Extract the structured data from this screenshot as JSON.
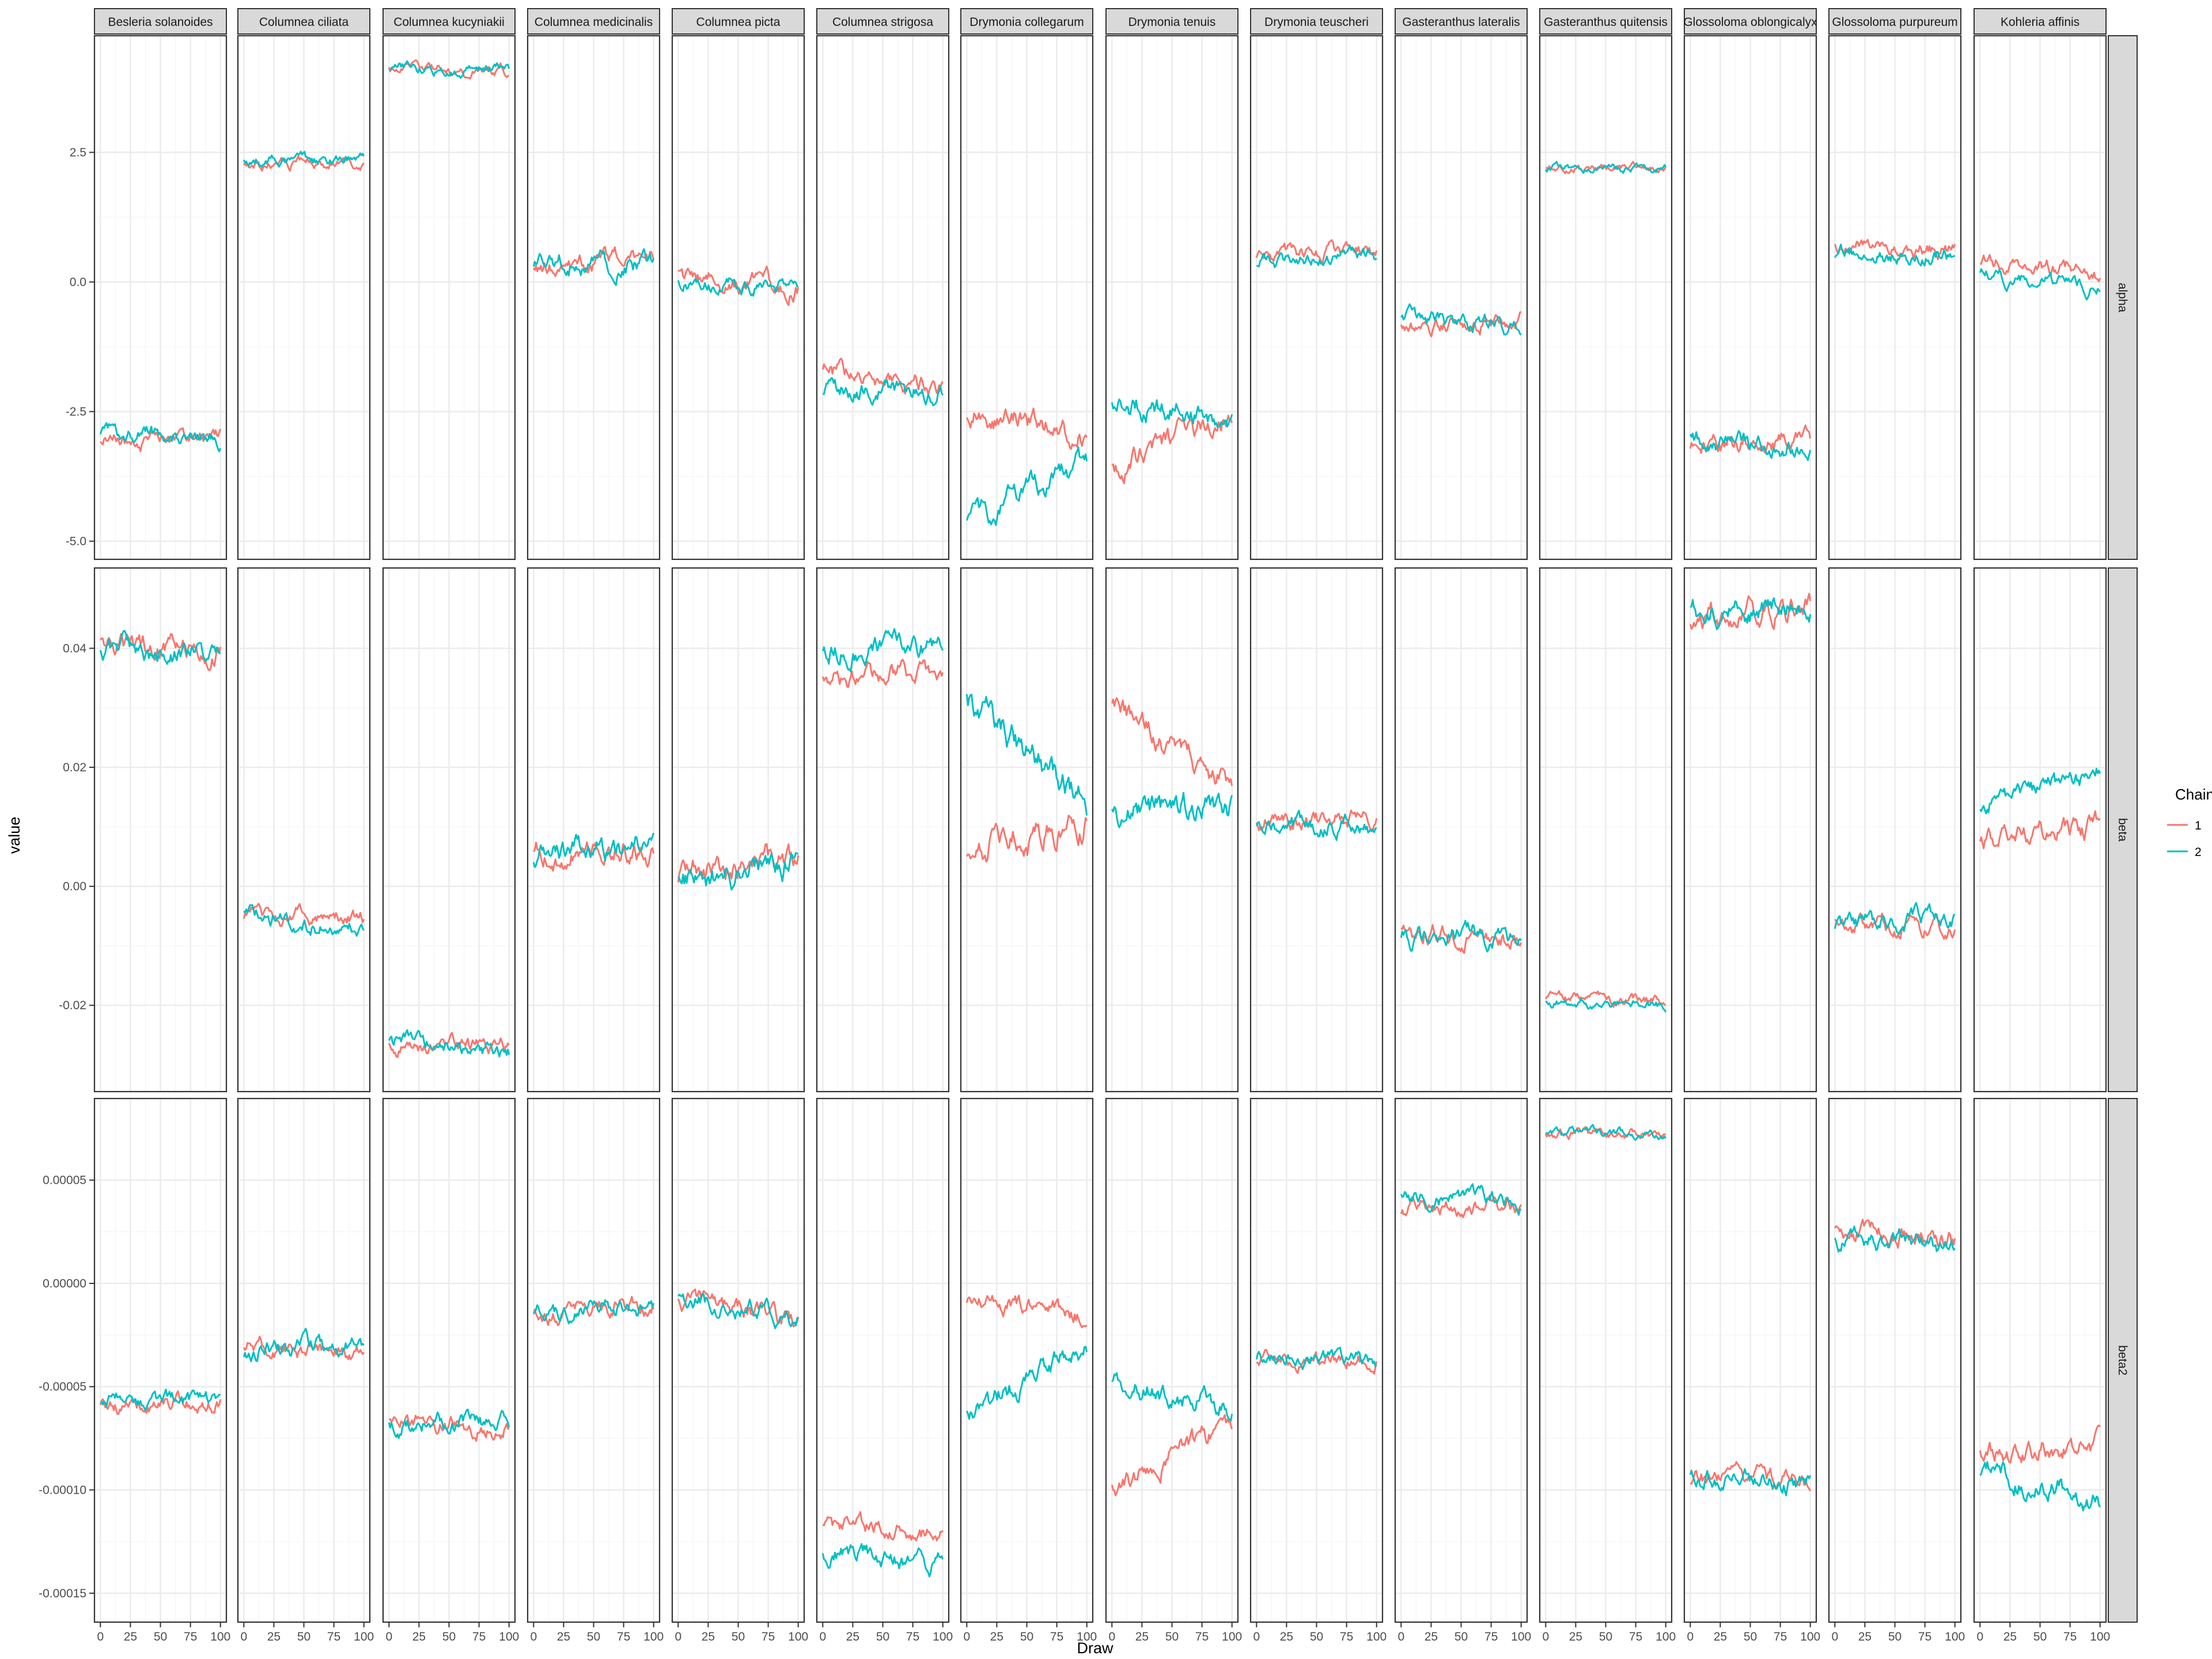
{
  "chart_data": {
    "type": "line",
    "xlabel": "Draw",
    "ylabel": "value",
    "x_range": [
      0,
      100
    ],
    "x_ticks": [
      0,
      25,
      50,
      75,
      100
    ],
    "x_tick_labels": [
      "0",
      "25",
      "50",
      "75",
      "100"
    ],
    "grid": true,
    "legend": {
      "title": "Chain",
      "placement": "right",
      "entries": [
        {
          "label": "1",
          "color": "#F8766D"
        },
        {
          "label": "2",
          "color": "#00BFC4"
        }
      ]
    },
    "facet_columns": [
      "Besleria solanoides",
      "Columnea ciliata",
      "Columnea kucyniakii",
      "Columnea medicinalis",
      "Columnea picta",
      "Columnea strigosa",
      "Drymonia collegarum",
      "Drymonia tenuis",
      "Drymonia teuscheri",
      "Gasteranthus lateralis",
      "Gasteranthus quitensis",
      "Glossoloma oblongicalyx",
      "Glossoloma purpureum",
      "Kohleria affinis"
    ],
    "facet_rows": [
      {
        "label": "alpha",
        "ylim": [
          -5.35,
          4.75
        ],
        "y_ticks": [
          -5,
          -2.5,
          0,
          2.5
        ],
        "y_tick_labels": [
          "-5.0",
          "-2.5",
          "0.0",
          "2.5"
        ]
      },
      {
        "label": "beta",
        "ylim": [
          -0.0345,
          0.0535
        ],
        "y_ticks": [
          -0.02,
          0,
          0.02,
          0.04
        ],
        "y_tick_labels": [
          "-0.02",
          "0.00",
          "0.02",
          "0.04"
        ]
      },
      {
        "label": "beta2",
        "ylim": [
          -0.000164,
          8.95e-05
        ],
        "y_ticks": [
          -0.00015,
          -0.0001,
          -5e-05,
          0,
          5e-05
        ],
        "y_tick_labels": [
          "-0.00015",
          "-0.00010",
          "-0.00005",
          "0.00000",
          "0.00005"
        ]
      }
    ],
    "series_note_keys": [
      "start",
      "end",
      "noise"
    ],
    "traces": {
      "alpha": [
        [
          [
            -3.1,
            -3.0,
            0.1
          ],
          [
            -2.9,
            -3.0,
            0.1
          ]
        ],
        [
          [
            2.3,
            2.3,
            0.07
          ],
          [
            2.3,
            2.35,
            0.07
          ]
        ],
        [
          [
            4.1,
            4.1,
            0.07
          ],
          [
            4.1,
            4.1,
            0.07
          ]
        ],
        [
          [
            0.3,
            0.5,
            0.12
          ],
          [
            0.4,
            0.35,
            0.12
          ]
        ],
        [
          [
            0.1,
            -0.1,
            0.12
          ],
          [
            0.0,
            -0.1,
            0.1
          ]
        ],
        [
          [
            -1.7,
            -2.0,
            0.12
          ],
          [
            -2.1,
            -2.1,
            0.12
          ]
        ],
        [
          [
            -2.5,
            -3.0,
            0.15
          ],
          [
            -4.7,
            -3.4,
            0.15
          ]
        ],
        [
          [
            -3.6,
            -2.5,
            0.14
          ],
          [
            -2.3,
            -2.6,
            0.14
          ]
        ],
        [
          [
            0.5,
            0.6,
            0.09
          ],
          [
            0.4,
            0.5,
            0.09
          ]
        ],
        [
          [
            -0.9,
            -0.7,
            0.1
          ],
          [
            -0.7,
            -0.9,
            0.1
          ]
        ],
        [
          [
            2.2,
            2.2,
            0.05
          ],
          [
            2.2,
            2.2,
            0.05
          ]
        ],
        [
          [
            -3.1,
            -3.1,
            0.13
          ],
          [
            -3.0,
            -3.2,
            0.12
          ]
        ],
        [
          [
            0.7,
            0.6,
            0.1
          ],
          [
            0.5,
            0.5,
            0.1
          ]
        ],
        [
          [
            0.4,
            0.2,
            0.1
          ],
          [
            0.1,
            -0.1,
            0.09
          ]
        ]
      ],
      "beta": [
        [
          [
            0.041,
            0.039,
            0.0012
          ],
          [
            0.04,
            0.039,
            0.0012
          ]
        ],
        [
          [
            -0.005,
            -0.005,
            0.0009
          ],
          [
            -0.005,
            -0.007,
            0.0009
          ]
        ],
        [
          [
            -0.027,
            -0.027,
            0.0009
          ],
          [
            -0.026,
            -0.028,
            0.0009
          ]
        ],
        [
          [
            0.006,
            0.006,
            0.0013
          ],
          [
            0.005,
            0.007,
            0.0013
          ]
        ],
        [
          [
            0.002,
            0.005,
            0.0014
          ],
          [
            0.001,
            0.004,
            0.0014
          ]
        ],
        [
          [
            0.035,
            0.036,
            0.0012
          ],
          [
            0.04,
            0.04,
            0.0012
          ]
        ],
        [
          [
            0.006,
            0.01,
            0.0016
          ],
          [
            0.031,
            0.014,
            0.0016
          ]
        ],
        [
          [
            0.03,
            0.017,
            0.0013
          ],
          [
            0.013,
            0.013,
            0.0015
          ]
        ],
        [
          [
            0.011,
            0.011,
            0.001
          ],
          [
            0.011,
            0.01,
            0.001
          ]
        ],
        [
          [
            -0.008,
            -0.009,
            0.0011
          ],
          [
            -0.009,
            -0.008,
            0.0011
          ]
        ],
        [
          [
            -0.019,
            -0.019,
            0.0006
          ],
          [
            -0.019,
            -0.02,
            0.0006
          ]
        ],
        [
          [
            0.045,
            0.047,
            0.0013
          ],
          [
            0.046,
            0.047,
            0.0013
          ]
        ],
        [
          [
            -0.006,
            -0.008,
            0.001
          ],
          [
            -0.007,
            -0.005,
            0.001
          ]
        ],
        [
          [
            0.008,
            0.01,
            0.0012
          ],
          [
            0.014,
            0.019,
            0.0011
          ]
        ]
      ],
      "beta2": [
        [
          [
            -6e-05,
            -5.7e-05,
            2.5e-06
          ],
          [
            -5.7e-05,
            -5.7e-05,
            2.5e-06
          ]
        ],
        [
          [
            -3e-05,
            -3.5e-05,
            2.8e-06
          ],
          [
            -3.3e-05,
            -2.8e-05,
            2.8e-06
          ]
        ],
        [
          [
            -6.8e-05,
            -7e-05,
            2.8e-06
          ],
          [
            -6.8e-05,
            -6.8e-05,
            2.8e-06
          ]
        ],
        [
          [
            -1.5e-05,
            -1e-05,
            3e-06
          ],
          [
            -1.2e-05,
            -1.2e-05,
            3e-06
          ]
        ],
        [
          [
            -5e-06,
            -2e-05,
            3e-06
          ],
          [
            -8e-06,
            -1.5e-05,
            3e-06
          ]
        ],
        [
          [
            -0.000118,
            -0.000122,
            3e-06
          ],
          [
            -0.00013,
            -0.000135,
            3e-06
          ]
        ],
        [
          [
            -8e-06,
            -1.5e-05,
            3e-06
          ],
          [
            -6.5e-05,
            -3e-05,
            3.5e-06
          ]
        ],
        [
          [
            -0.0001,
            -6.8e-05,
            3.5e-06
          ],
          [
            -4.8e-05,
            -6e-05,
            3.5e-06
          ]
        ],
        [
          [
            -3.8e-05,
            -3.7e-05,
            2.5e-06
          ],
          [
            -3.5e-05,
            -3.8e-05,
            2.5e-06
          ]
        ],
        [
          [
            3.6e-05,
            3.8e-05,
            2.5e-06
          ],
          [
            4.2e-05,
            3.9e-05,
            2.5e-06
          ]
        ],
        [
          [
            7.2e-05,
            7.3e-05,
            1.5e-06
          ],
          [
            7.3e-05,
            7.3e-05,
            1.5e-06
          ]
        ],
        [
          [
            -9.5e-05,
            -9.5e-05,
            3e-06
          ],
          [
            -9.5e-05,
            -9.7e-05,
            3e-06
          ]
        ],
        [
          [
            2.5e-05,
            2.2e-05,
            3e-06
          ],
          [
            2.2e-05,
            1.8e-05,
            3e-06
          ]
        ],
        [
          [
            -8e-05,
            -8e-05,
            3.5e-06
          ],
          [
            -9e-05,
            -0.000105,
            3.5e-06
          ]
        ]
      ]
    }
  }
}
